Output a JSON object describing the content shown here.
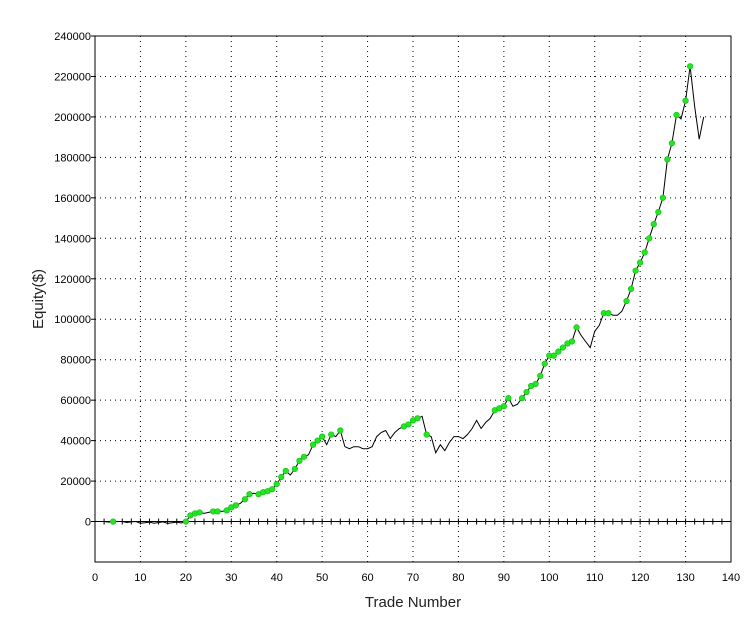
{
  "chart_data": {
    "type": "line",
    "title": "",
    "xlabel": "Trade Number",
    "ylabel": "Equity($)",
    "xlim": [
      0,
      140
    ],
    "ylim": [
      -20000,
      240000
    ],
    "x_ticks": [
      0,
      10,
      20,
      30,
      40,
      50,
      60,
      70,
      80,
      90,
      100,
      110,
      120,
      130,
      140
    ],
    "y_ticks": [
      0,
      20000,
      40000,
      60000,
      80000,
      100000,
      120000,
      140000,
      160000,
      180000,
      200000,
      220000,
      240000
    ],
    "grid": true,
    "colors": {
      "line": "#000000",
      "marker": "#22e622",
      "grid": "#000000"
    },
    "series": [
      {
        "points": [
          [
            1,
            0
          ],
          [
            2,
            0
          ],
          [
            3,
            -300
          ],
          [
            4,
            0
          ],
          [
            5,
            0
          ],
          [
            6,
            0
          ],
          [
            7,
            -500
          ],
          [
            8,
            -200
          ],
          [
            9,
            0
          ],
          [
            10,
            -800
          ],
          [
            11,
            -600
          ],
          [
            12,
            -300
          ],
          [
            13,
            -800
          ],
          [
            14,
            -500
          ],
          [
            15,
            -200
          ],
          [
            16,
            -900
          ],
          [
            17,
            -600
          ],
          [
            18,
            -300
          ],
          [
            19,
            -700
          ],
          [
            20,
            0
          ],
          [
            21,
            3000
          ],
          [
            22,
            4000
          ],
          [
            23,
            4500
          ],
          [
            24,
            4000
          ],
          [
            25,
            4500
          ],
          [
            26,
            5000
          ],
          [
            27,
            5000
          ],
          [
            28,
            5000
          ],
          [
            29,
            5500
          ],
          [
            30,
            7000
          ],
          [
            31,
            8000
          ],
          [
            32,
            9000
          ],
          [
            33,
            11000
          ],
          [
            34,
            13500
          ],
          [
            35,
            14000
          ],
          [
            36,
            13500
          ],
          [
            37,
            14500
          ],
          [
            38,
            15000
          ],
          [
            39,
            16000
          ],
          [
            40,
            18500
          ],
          [
            41,
            22000
          ],
          [
            42,
            25000
          ],
          [
            43,
            23000
          ],
          [
            44,
            26000
          ],
          [
            45,
            30000
          ],
          [
            46,
            32000
          ],
          [
            47,
            33000
          ],
          [
            48,
            38000
          ],
          [
            49,
            40000
          ],
          [
            50,
            42000
          ],
          [
            51,
            38000
          ],
          [
            52,
            43000
          ],
          [
            53,
            42000
          ],
          [
            54,
            45000
          ],
          [
            55,
            37000
          ],
          [
            56,
            36000
          ],
          [
            57,
            37000
          ],
          [
            58,
            37000
          ],
          [
            59,
            36000
          ],
          [
            60,
            36000
          ],
          [
            61,
            37000
          ],
          [
            62,
            42000
          ],
          [
            63,
            44000
          ],
          [
            64,
            45000
          ],
          [
            65,
            41000
          ],
          [
            66,
            44000
          ],
          [
            67,
            46000
          ],
          [
            68,
            47000
          ],
          [
            69,
            48000
          ],
          [
            70,
            50000
          ],
          [
            71,
            51000
          ],
          [
            72,
            52000
          ],
          [
            73,
            43000
          ],
          [
            74,
            42000
          ],
          [
            75,
            34000
          ],
          [
            76,
            38000
          ],
          [
            77,
            35000
          ],
          [
            78,
            39000
          ],
          [
            79,
            42000
          ],
          [
            80,
            42000
          ],
          [
            81,
            41000
          ],
          [
            82,
            43000
          ],
          [
            83,
            46000
          ],
          [
            84,
            50000
          ],
          [
            85,
            46000
          ],
          [
            86,
            49000
          ],
          [
            87,
            51000
          ],
          [
            88,
            55000
          ],
          [
            89,
            56000
          ],
          [
            90,
            57000
          ],
          [
            91,
            61000
          ],
          [
            92,
            57000
          ],
          [
            93,
            58000
          ],
          [
            94,
            61000
          ],
          [
            95,
            64000
          ],
          [
            96,
            67000
          ],
          [
            97,
            68000
          ],
          [
            98,
            72000
          ],
          [
            99,
            78000
          ],
          [
            100,
            82000
          ],
          [
            101,
            82000
          ],
          [
            102,
            84000
          ],
          [
            103,
            86000
          ],
          [
            104,
            88000
          ],
          [
            105,
            89000
          ],
          [
            106,
            96000
          ],
          [
            107,
            92000
          ],
          [
            108,
            89000
          ],
          [
            109,
            86000
          ],
          [
            110,
            94000
          ],
          [
            111,
            97000
          ],
          [
            112,
            103000
          ],
          [
            113,
            103000
          ],
          [
            114,
            102000
          ],
          [
            115,
            102000
          ],
          [
            116,
            104000
          ],
          [
            117,
            109000
          ],
          [
            118,
            115000
          ],
          [
            119,
            124000
          ],
          [
            120,
            128000
          ],
          [
            121,
            133000
          ],
          [
            122,
            140000
          ],
          [
            123,
            147000
          ],
          [
            124,
            153000
          ],
          [
            125,
            160000
          ],
          [
            126,
            179000
          ],
          [
            127,
            187000
          ],
          [
            128,
            201000
          ],
          [
            129,
            199000
          ],
          [
            130,
            208000
          ],
          [
            131,
            225000
          ],
          [
            132,
            205000
          ],
          [
            133,
            189000
          ],
          [
            134,
            200000
          ]
        ],
        "marked_x": [
          4,
          20,
          21,
          22,
          23,
          26,
          27,
          29,
          30,
          31,
          33,
          34,
          36,
          37,
          38,
          39,
          40,
          41,
          42,
          44,
          45,
          46,
          48,
          49,
          50,
          52,
          54,
          68,
          69,
          70,
          71,
          73,
          88,
          89,
          90,
          91,
          94,
          95,
          96,
          97,
          98,
          99,
          100,
          101,
          102,
          103,
          104,
          105,
          106,
          112,
          113,
          117,
          118,
          119,
          120,
          121,
          122,
          123,
          124,
          125,
          126,
          127,
          128,
          130,
          131
        ]
      }
    ]
  }
}
